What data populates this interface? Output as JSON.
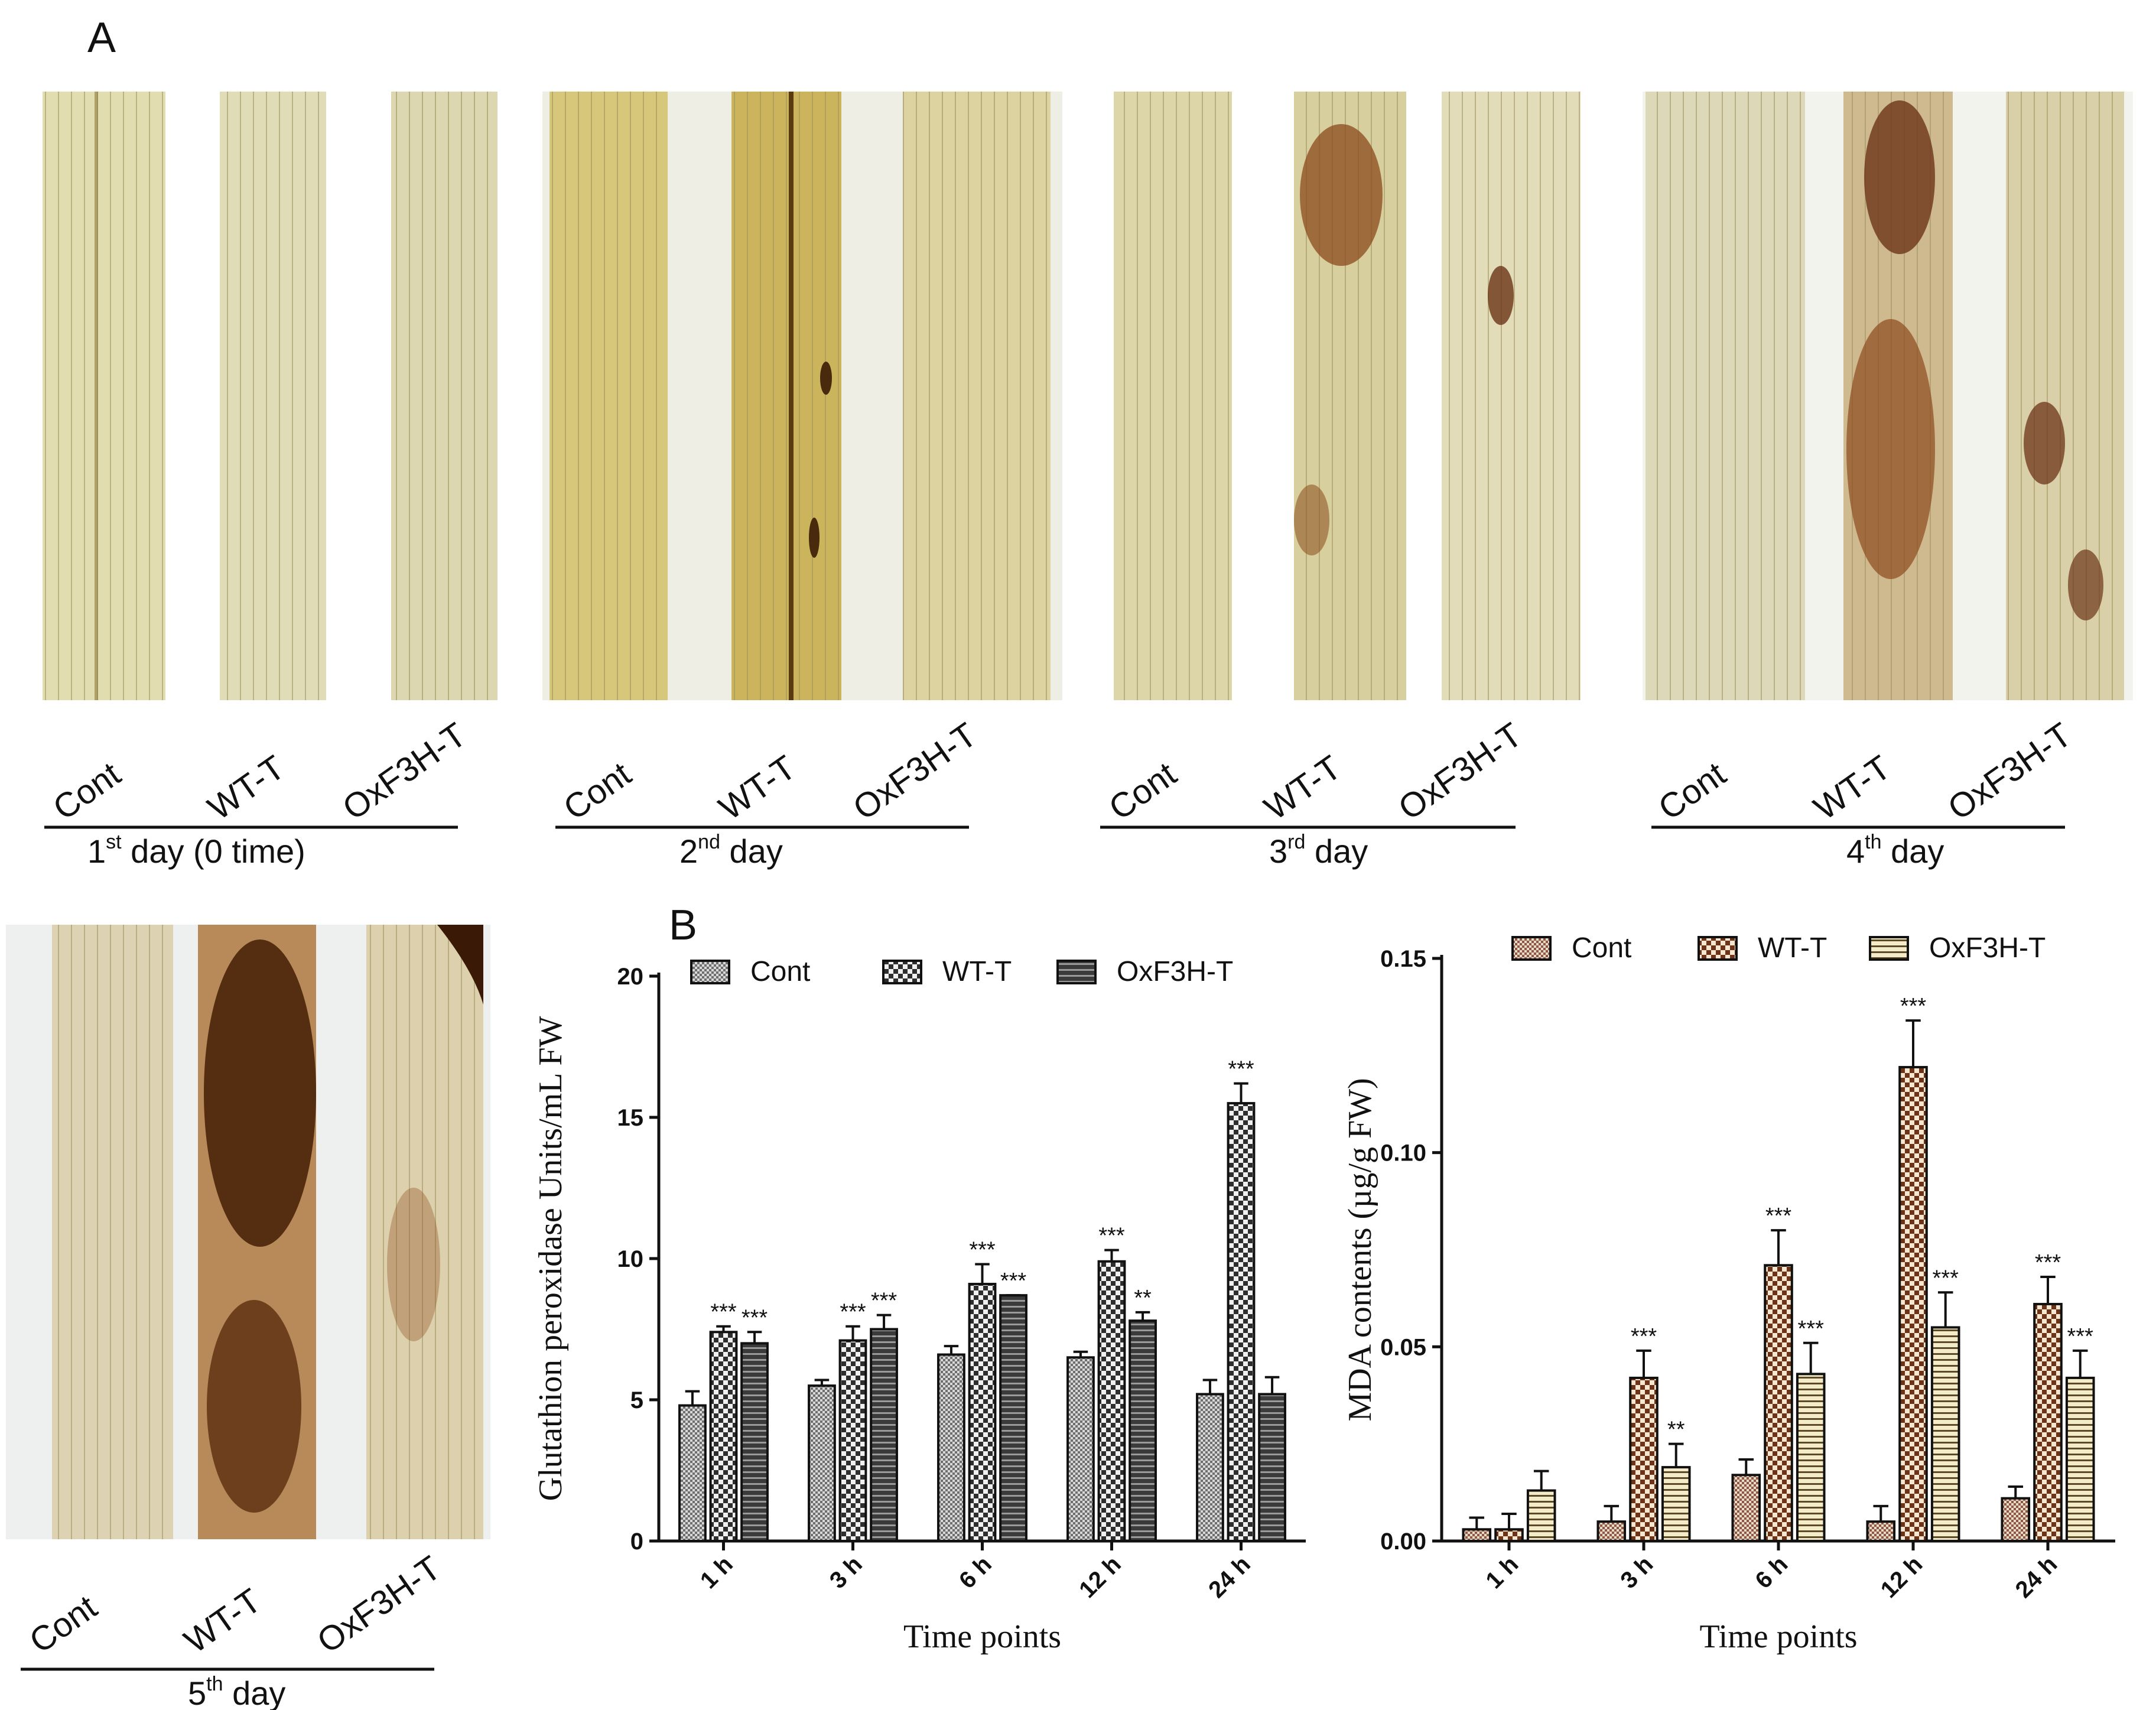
{
  "figure": {
    "panel_a_letter": "A",
    "panel_b_letter": "B"
  },
  "panel_a": {
    "groups": [
      {
        "labels": [
          "Cont",
          "WT-T",
          "OxF3H-T"
        ],
        "day_main": "1",
        "day_sup": "st",
        "day_rest": " day (0 time)"
      },
      {
        "labels": [
          "Cont",
          "WT-T",
          "OxF3H-T"
        ],
        "day_main": "2",
        "day_sup": "nd",
        "day_rest": " day"
      },
      {
        "labels": [
          "Cont",
          "WT-T",
          "OxF3H-T"
        ],
        "day_main": "3",
        "day_sup": "rd",
        "day_rest": " day"
      },
      {
        "labels": [
          "Cont",
          "WT-T",
          "OxF3H-T"
        ],
        "day_main": "4",
        "day_sup": "th",
        "day_rest": " day"
      },
      {
        "labels": [
          "Cont",
          "WT-T",
          "OxF3H-T"
        ],
        "day_main": "5",
        "day_sup": "th",
        "day_rest": " day"
      }
    ],
    "leaf_colors": {
      "day1": "#e2ddb0",
      "day2": "#d9c97a",
      "day3": "#ddd6a8",
      "day4": "#dcd8b8",
      "day5": "#ddd3b2",
      "stain_dark": "#5a2c0c",
      "stain_brown": "#8b4a1c"
    }
  },
  "chart_data": [
    {
      "type": "bar",
      "categories": [
        "1 h",
        "3 h",
        "6 h",
        "12 h",
        "24 h"
      ],
      "series": [
        {
          "name": "Cont",
          "values": [
            4.8,
            5.5,
            6.6,
            6.5,
            5.2
          ],
          "errors": [
            0.5,
            0.2,
            0.3,
            0.2,
            0.5
          ],
          "stars": [
            "",
            "",
            "",
            "",
            ""
          ],
          "pattern": "fine-check",
          "color": "#7a7a7a"
        },
        {
          "name": "WT-T",
          "values": [
            7.4,
            7.1,
            9.1,
            9.9,
            15.5
          ],
          "errors": [
            0.2,
            0.5,
            0.7,
            0.4,
            0.7
          ],
          "stars": [
            "***",
            "***",
            "***",
            "***",
            "***"
          ],
          "pattern": "large-check",
          "color": "#333333"
        },
        {
          "name": "OxF3H-T",
          "values": [
            7.0,
            7.5,
            8.7,
            7.8,
            5.2
          ],
          "errors": [
            0.4,
            0.5,
            0.0,
            0.3,
            0.6
          ],
          "stars": [
            "***",
            "***",
            "***",
            "**",
            ""
          ],
          "pattern": "h-stripes",
          "color": "#3a3a3a"
        }
      ],
      "xlabel": "Time points",
      "ylabel": "Glutathion peroxidase Units/mL FW",
      "ylim": [
        0,
        20
      ],
      "yticks": [
        "0",
        "5",
        "10",
        "15",
        "20"
      ],
      "grid": false,
      "legend": "top"
    },
    {
      "type": "bar",
      "categories": [
        "1 h",
        "3 h",
        "6 h",
        "12 h",
        "24 h"
      ],
      "series": [
        {
          "name": "Cont",
          "values": [
            0.003,
            0.005,
            0.017,
            0.005,
            0.011
          ],
          "errors": [
            0.003,
            0.004,
            0.004,
            0.004,
            0.003
          ],
          "stars": [
            "",
            "",
            "",
            "",
            ""
          ],
          "pattern": "fine-check",
          "color": "#8b5a44"
        },
        {
          "name": "WT-T",
          "values": [
            0.003,
            0.042,
            0.071,
            0.122,
            0.061
          ],
          "errors": [
            0.004,
            0.007,
            0.009,
            0.012,
            0.007
          ],
          "stars": [
            "",
            "***",
            "***",
            "***",
            "***"
          ],
          "pattern": "large-check",
          "color": "#7a3f22"
        },
        {
          "name": "OxF3H-T",
          "values": [
            0.013,
            0.019,
            0.043,
            0.055,
            0.042
          ],
          "errors": [
            0.005,
            0.006,
            0.008,
            0.009,
            0.007
          ],
          "stars": [
            "",
            "**",
            "***",
            "***",
            "***"
          ],
          "pattern": "h-stripes",
          "color": "#6b5530"
        }
      ],
      "xlabel": "Time points",
      "ylabel": "MDA contents (µg/g FW)",
      "ylim": [
        0,
        0.15
      ],
      "yticks": [
        "0.00",
        "0.05",
        "0.10",
        "0.15"
      ],
      "grid": false,
      "legend": "top"
    }
  ]
}
